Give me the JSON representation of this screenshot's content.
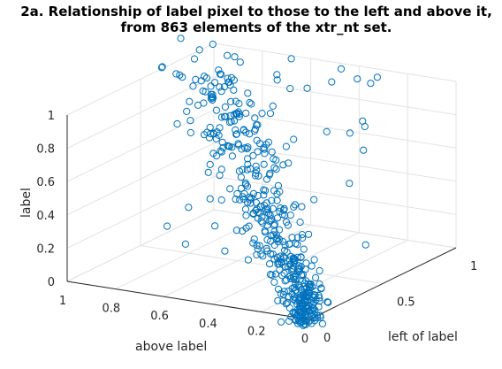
{
  "chart_data": {
    "type": "scatter3d",
    "title_line1": "2a. Relationship of label pixel to those to the left and above it,",
    "title_line2": "from 863 elements of the xtr_nt set.",
    "xlabel": "left of label",
    "ylabel": "above label",
    "zlabel": "label",
    "xlim": [
      0,
      1
    ],
    "ylim": [
      0,
      1
    ],
    "zlim": [
      0,
      1
    ],
    "xticks": [
      "0",
      "0.5",
      "1"
    ],
    "yticks": [
      "0",
      "0.2",
      "0.4",
      "0.6",
      "0.8",
      "1"
    ],
    "zticks": [
      "0",
      "0.2",
      "0.4",
      "0.6",
      "0.8",
      "1"
    ],
    "grid": true,
    "marker": "circle-open",
    "marker_color": "#0072BD",
    "n_points": 863
  }
}
